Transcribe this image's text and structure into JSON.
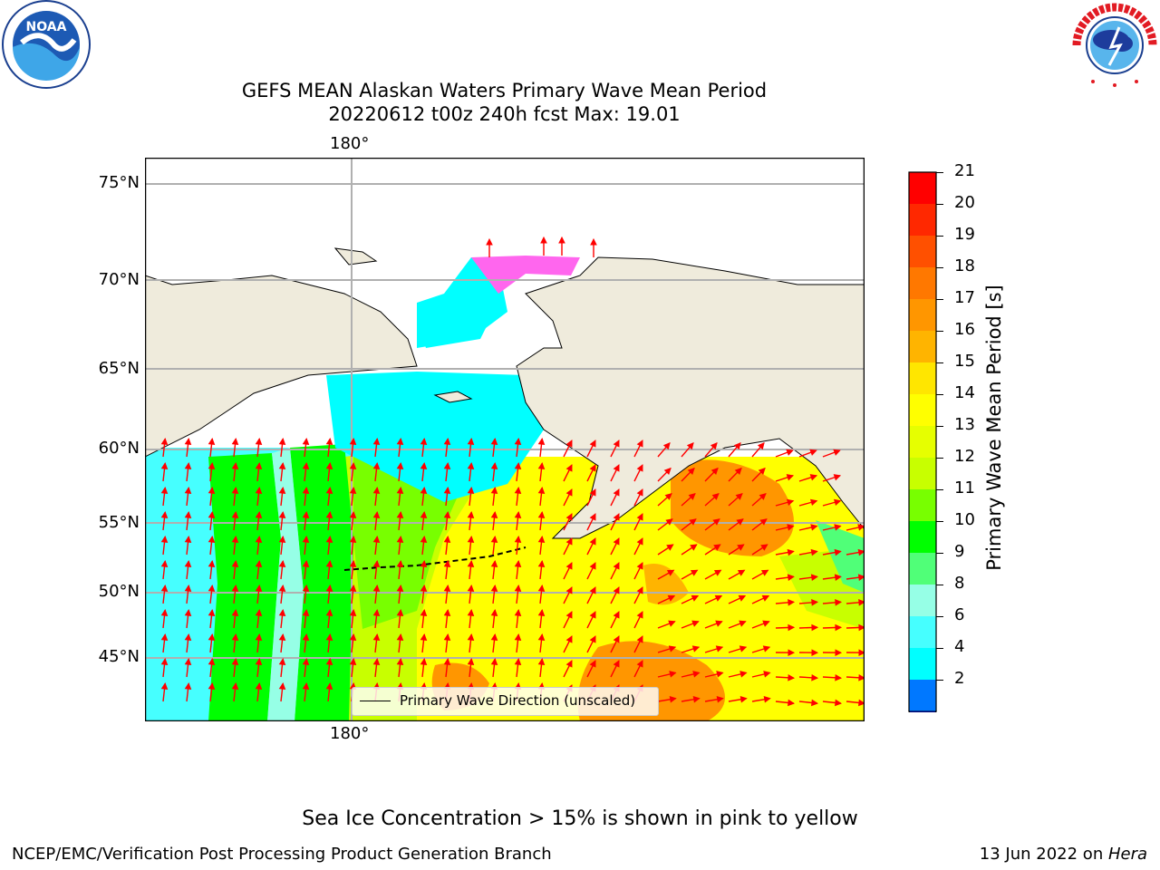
{
  "title_line1": "GEFS MEAN Alaskan Waters Primary Wave Mean Period",
  "title_line2": "20220612 t00z 240h fcst   Max: 19.01",
  "logos": {
    "left": "NOAA",
    "right": "NATIONAL WEATHER SERVICE"
  },
  "map": {
    "lon_label_top": "180°",
    "lon_label_bottom": "180°",
    "lat_labels": [
      "75°N",
      "70°N",
      "65°N",
      "60°N",
      "55°N",
      "50°N",
      "45°N"
    ],
    "legend_label": "Primary Wave Direction (unscaled)"
  },
  "colorbar": {
    "title": "Primary Wave Mean Period [s]",
    "ticks": [
      "21",
      "20",
      "19",
      "18",
      "17",
      "16",
      "15",
      "14",
      "13",
      "12",
      "11",
      "10",
      "9",
      "8",
      "6",
      "4",
      "2"
    ],
    "colors_top_to_bottom": [
      "#ff0000",
      "#ff2800",
      "#ff5000",
      "#ff7800",
      "#ff9600",
      "#ffb400",
      "#ffe600",
      "#ffff00",
      "#e6ff00",
      "#c8ff00",
      "#78ff00",
      "#00ff00",
      "#50ff78",
      "#96ffe6",
      "#46ffff",
      "#00ffff",
      "#0078ff"
    ],
    "extend_color": "#0000ff"
  },
  "caption": "Sea Ice Concentration > 15% is shown in pink to yellow",
  "footer_left": "NCEP/EMC/Verification Post Processing Product Generation Branch",
  "footer_right_text": "13 Jun 2022 on ",
  "footer_right_host": "Hera"
}
